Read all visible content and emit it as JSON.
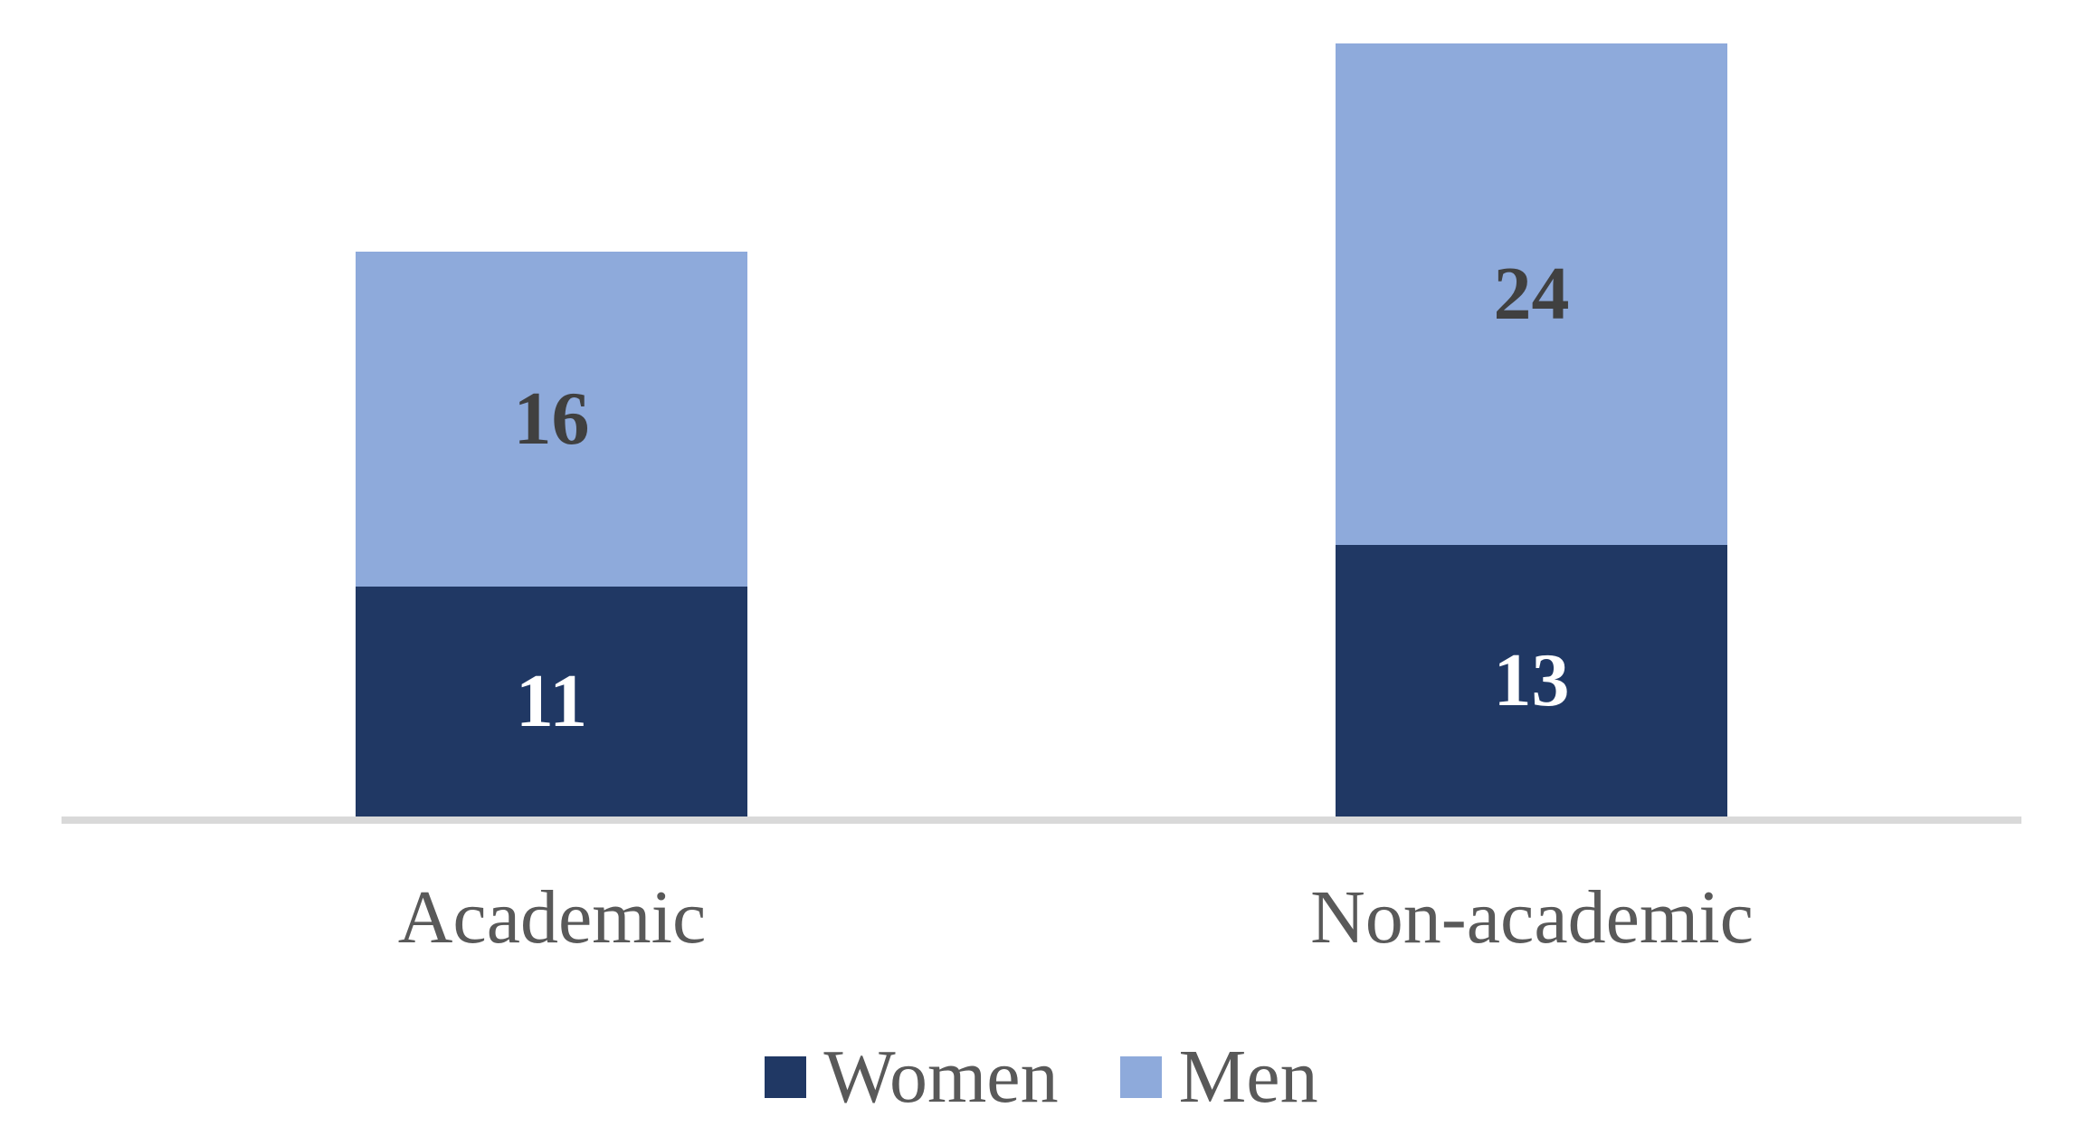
{
  "chart_data": {
    "type": "bar",
    "stacked": true,
    "categories": [
      "Academic",
      "Non-academic"
    ],
    "series": [
      {
        "name": "Women",
        "values": [
          11,
          13
        ],
        "color": "#203864",
        "label_color": "#FFFFFF"
      },
      {
        "name": "Men",
        "values": [
          16,
          24
        ],
        "color": "#8EAADB",
        "label_color": "#404040"
      }
    ],
    "title": "",
    "xlabel": "",
    "ylabel": "",
    "ylim": [
      0,
      37.5
    ],
    "grid": false,
    "legend_position": "bottom",
    "value_label_position": "center",
    "axis_line_color": "#D9D9D9",
    "category_label_color": "#595959",
    "background_color": "#FFFFFF"
  }
}
